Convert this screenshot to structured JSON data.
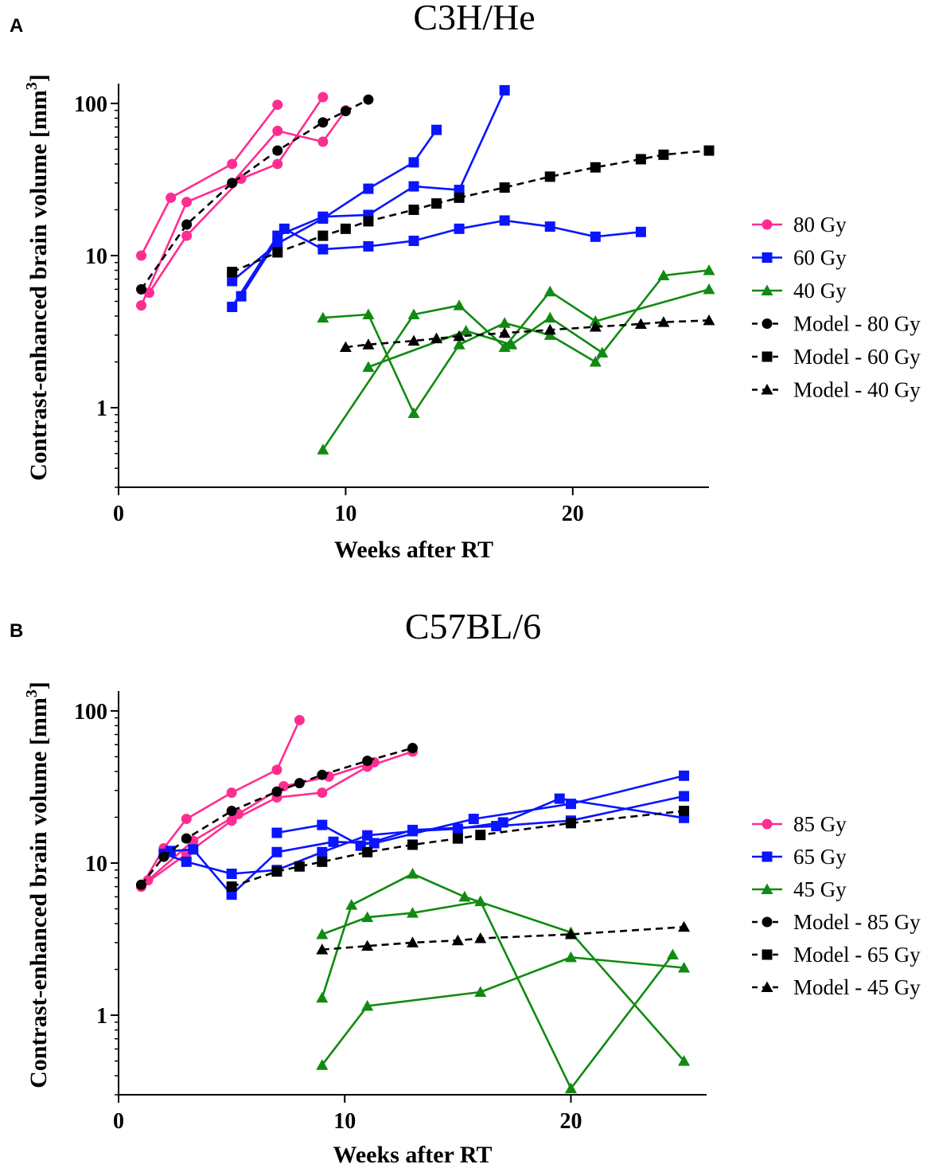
{
  "chart_data": [
    {
      "panel": "A",
      "type": "line",
      "title": "C3H/He",
      "xlabel": "Weeks after RT",
      "ylabel": "Contrast-enhanced brain volume [mm",
      "ylabel_superscript": "3",
      "ylabel_close": "]",
      "yscale": "log",
      "xlim": [
        0,
        26
      ],
      "ylim": [
        0.3,
        135
      ],
      "xticks": [
        0,
        10,
        20
      ],
      "xtick_labels": [
        "0",
        "10",
        "20"
      ],
      "yticks": [
        1,
        10,
        100
      ],
      "ytick_labels": [
        "1",
        "10",
        "100"
      ],
      "legend_position": "right",
      "legend": [
        {
          "label": "80 Gy",
          "color": "#ff2d91",
          "marker": "circle",
          "dashed": false
        },
        {
          "label": "60 Gy",
          "color": "#0a14ff",
          "marker": "square",
          "dashed": false
        },
        {
          "label": "40 Gy",
          "color": "#118a11",
          "marker": "triangle",
          "dashed": false
        },
        {
          "label": "Model - 80 Gy",
          "color": "#000000",
          "marker": "circle",
          "dashed": true
        },
        {
          "label": "Model - 60 Gy",
          "color": "#000000",
          "marker": "square",
          "dashed": true
        },
        {
          "label": "Model - 40 Gy",
          "color": "#000000",
          "marker": "triangle",
          "dashed": true
        }
      ],
      "series": [
        {
          "name": "80 Gy - mouse 1",
          "color": "#ff2d91",
          "marker": "circle",
          "dashed": false,
          "x": [
            1,
            2.3,
            5,
            7
          ],
          "y": [
            10,
            24,
            40,
            98
          ]
        },
        {
          "name": "80 Gy - mouse 2",
          "color": "#ff2d91",
          "marker": "circle",
          "dashed": false,
          "x": [
            1,
            3,
            5,
            7,
            9,
            10
          ],
          "y": [
            4.7,
            22.5,
            30,
            66,
            56,
            90
          ]
        },
        {
          "name": "80 Gy - mouse 3",
          "color": "#ff2d91",
          "marker": "circle",
          "dashed": false,
          "x": [
            1.35,
            3,
            5.4,
            7,
            9
          ],
          "y": [
            5.7,
            13.5,
            32,
            40,
            110
          ]
        },
        {
          "name": "60 Gy - mouse 1",
          "color": "#0a14ff",
          "marker": "square",
          "dashed": false,
          "x": [
            5,
            7,
            9,
            11,
            13,
            14
          ],
          "y": [
            6.8,
            12,
            17.5,
            27.5,
            41,
            67
          ]
        },
        {
          "name": "60 Gy - mouse 2",
          "color": "#0a14ff",
          "marker": "square",
          "dashed": false,
          "x": [
            5,
            7,
            9,
            11,
            13,
            15,
            17
          ],
          "y": [
            4.6,
            13.5,
            18,
            18.5,
            28.5,
            27,
            122
          ]
        },
        {
          "name": "60 Gy - mouse 3",
          "color": "#0a14ff",
          "marker": "square",
          "dashed": false,
          "x": [
            5.4,
            7.3,
            9,
            11,
            13,
            15,
            17,
            19,
            21,
            23
          ],
          "y": [
            5.4,
            15,
            11,
            11.5,
            12.5,
            15,
            17,
            15.5,
            13.3,
            14.3
          ]
        },
        {
          "name": "40 Gy - mouse 1",
          "color": "#118a11",
          "marker": "triangle",
          "dashed": false,
          "x": [
            9,
            11,
            13,
            15,
            17,
            19,
            21,
            24,
            26
          ],
          "y": [
            3.9,
            4.1,
            0.92,
            2.6,
            3.6,
            3.0,
            2.0,
            7.4,
            8.0
          ]
        },
        {
          "name": "40 Gy - mouse 2",
          "color": "#118a11",
          "marker": "triangle",
          "dashed": false,
          "x": [
            9,
            13,
            15,
            17,
            19,
            21,
            26
          ],
          "y": [
            0.53,
            4.1,
            4.7,
            2.5,
            5.8,
            3.7,
            6.0
          ]
        },
        {
          "name": "40 Gy - mouse 3",
          "color": "#118a11",
          "marker": "triangle",
          "dashed": false,
          "x": [
            11,
            15.3,
            17.3,
            19,
            21.3
          ],
          "y": [
            1.85,
            3.2,
            2.6,
            3.9,
            2.3
          ]
        },
        {
          "name": "Model - 80 Gy",
          "color": "#000000",
          "marker": "circle",
          "dashed": true,
          "x": [
            1,
            3,
            5,
            7,
            9,
            10,
            11
          ],
          "y": [
            6.0,
            16,
            30,
            49,
            75,
            89,
            106
          ]
        },
        {
          "name": "Model - 60 Gy",
          "color": "#000000",
          "marker": "square",
          "dashed": true,
          "x": [
            5,
            7,
            9,
            10,
            11,
            13,
            14,
            15,
            17,
            19,
            21,
            23,
            24,
            26
          ],
          "y": [
            7.8,
            10.5,
            13.5,
            15,
            16.8,
            20,
            22,
            24,
            28,
            33,
            38,
            43,
            46,
            49
          ]
        },
        {
          "name": "Model - 40 Gy",
          "color": "#000000",
          "marker": "triangle",
          "dashed": true,
          "x": [
            10,
            11,
            13,
            14,
            15,
            17,
            19,
            21,
            23,
            24,
            26
          ],
          "y": [
            2.5,
            2.6,
            2.75,
            2.85,
            2.95,
            3.1,
            3.25,
            3.4,
            3.55,
            3.65,
            3.75
          ]
        }
      ]
    },
    {
      "panel": "B",
      "type": "line",
      "title": "C57BL/6",
      "xlabel": "Weeks after RT",
      "ylabel": "Contrast-enhanced brain volume [mm",
      "ylabel_superscript": "3",
      "ylabel_close": "]",
      "yscale": "log",
      "xlim": [
        0,
        26
      ],
      "ylim": [
        0.3,
        135
      ],
      "xticks": [
        0,
        10,
        20
      ],
      "xtick_labels": [
        "0",
        "10",
        "20"
      ],
      "yticks": [
        1,
        10,
        100
      ],
      "ytick_labels": [
        "1",
        "10",
        "100"
      ],
      "legend_position": "right",
      "legend": [
        {
          "label": "85 Gy",
          "color": "#ff2d91",
          "marker": "circle",
          "dashed": false
        },
        {
          "label": "65 Gy",
          "color": "#0a14ff",
          "marker": "square",
          "dashed": false
        },
        {
          "label": "45 Gy",
          "color": "#118a11",
          "marker": "triangle",
          "dashed": false
        },
        {
          "label": "Model - 85 Gy",
          "color": "#000000",
          "marker": "circle",
          "dashed": true
        },
        {
          "label": "Model - 65 Gy",
          "color": "#000000",
          "marker": "square",
          "dashed": true
        },
        {
          "label": "Model - 45 Gy",
          "color": "#000000",
          "marker": "triangle",
          "dashed": true
        }
      ],
      "series": [
        {
          "name": "85 Gy - mouse 1",
          "color": "#ff2d91",
          "marker": "circle",
          "dashed": false,
          "x": [
            1,
            2,
            3,
            5,
            7,
            8
          ],
          "y": [
            7.0,
            12.5,
            19.5,
            29,
            41,
            87
          ]
        },
        {
          "name": "85 Gy - mouse 2",
          "color": "#ff2d91",
          "marker": "circle",
          "dashed": false,
          "x": [
            1,
            3,
            5,
            7,
            9,
            11,
            13
          ],
          "y": [
            7.0,
            11.5,
            19,
            27,
            29,
            43,
            54
          ]
        },
        {
          "name": "85 Gy - mouse 3",
          "color": "#ff2d91",
          "marker": "circle",
          "dashed": false,
          "x": [
            1.3,
            3.3,
            5.3,
            7.3,
            9.3,
            11.3
          ],
          "y": [
            7.7,
            14,
            21,
            32,
            37,
            46
          ]
        },
        {
          "name": "65 Gy - mouse 1",
          "color": "#0a14ff",
          "marker": "square",
          "dashed": false,
          "x": [
            2,
            3,
            5,
            7,
            9,
            11,
            13,
            15,
            17,
            19.5,
            25
          ],
          "y": [
            11.5,
            10.2,
            8.5,
            9.0,
            11.8,
            15.2,
            16.2,
            16.8,
            18.5,
            26.5,
            19.8
          ]
        },
        {
          "name": "65 Gy - mouse 2",
          "color": "#0a14ff",
          "marker": "square",
          "dashed": false,
          "x": [
            2.3,
            3.3,
            5,
            7,
            9.5,
            11.3,
            15.7,
            20,
            25
          ],
          "y": [
            12,
            12.3,
            6.2,
            11.8,
            13.8,
            13.5,
            19.5,
            24.5,
            37.5
          ]
        },
        {
          "name": "65 Gy - mouse 3",
          "color": "#0a14ff",
          "marker": "square",
          "dashed": false,
          "x": [
            7,
            9,
            10.7,
            13,
            16.7,
            20,
            25
          ],
          "y": [
            15.8,
            17.8,
            13,
            16.5,
            17.5,
            19,
            27.5
          ]
        },
        {
          "name": "45 Gy - mouse 1",
          "color": "#118a11",
          "marker": "triangle",
          "dashed": false,
          "x": [
            9,
            10.3,
            13,
            15.3,
            20,
            25
          ],
          "y": [
            1.3,
            5.3,
            8.5,
            6.0,
            3.5,
            0.5
          ]
        },
        {
          "name": "45 Gy - mouse 2",
          "color": "#118a11",
          "marker": "triangle",
          "dashed": false,
          "x": [
            9,
            11,
            13,
            16,
            20,
            24.5
          ],
          "y": [
            3.4,
            4.4,
            4.7,
            5.6,
            0.33,
            2.5
          ]
        },
        {
          "name": "45 Gy - mouse 3",
          "color": "#118a11",
          "marker": "triangle",
          "dashed": false,
          "x": [
            9,
            11,
            16,
            20,
            25
          ],
          "y": [
            0.47,
            1.15,
            1.42,
            2.4,
            2.05
          ]
        },
        {
          "name": "Model - 85 Gy",
          "color": "#000000",
          "marker": "circle",
          "dashed": true,
          "x": [
            1,
            2,
            3,
            5,
            7,
            8,
            9,
            11,
            13
          ],
          "y": [
            7.2,
            11,
            14.5,
            22,
            29.5,
            33.5,
            38,
            47,
            57
          ]
        },
        {
          "name": "Model - 65 Gy",
          "color": "#000000",
          "marker": "square",
          "dashed": true,
          "x": [
            5,
            7,
            8,
            9,
            11,
            13,
            15,
            16,
            20,
            25
          ],
          "y": [
            7.0,
            8.8,
            9.5,
            10.2,
            11.8,
            13.2,
            14.5,
            15.3,
            18.3,
            22
          ]
        },
        {
          "name": "Model - 45 Gy",
          "color": "#000000",
          "marker": "triangle",
          "dashed": true,
          "x": [
            9,
            11,
            13,
            15,
            16,
            20,
            25
          ],
          "y": [
            2.7,
            2.85,
            3.0,
            3.1,
            3.2,
            3.4,
            3.8
          ]
        }
      ]
    }
  ]
}
